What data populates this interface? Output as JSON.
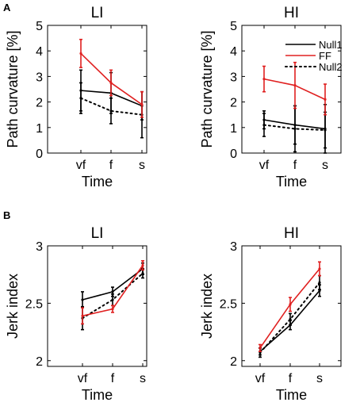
{
  "panel_labels": [
    "A",
    "B"
  ],
  "legend": {
    "placement": "top-right of panel A HI",
    "entries": [
      {
        "name": "Null1",
        "color": "#000000",
        "style": "solid"
      },
      {
        "name": "FF",
        "color": "#e02020",
        "style": "solid"
      },
      {
        "name": "Null2",
        "color": "#000000",
        "style": "dotted"
      }
    ]
  },
  "chart_data": [
    {
      "panel": "A",
      "type": "line",
      "title": "LI",
      "xlabel": "Time",
      "ylabel": "Path curvature [%]",
      "categories": [
        "vf",
        "f",
        "s"
      ],
      "ylim": [
        0,
        5
      ],
      "yticks": [
        "0",
        "1",
        "2",
        "3",
        "4",
        "5"
      ],
      "grid": false,
      "series": [
        {
          "name": "Null1",
          "values": [
            2.45,
            2.35,
            1.85
          ],
          "errors": [
            0.8,
            0.8,
            0.55
          ]
        },
        {
          "name": "FF",
          "values": [
            3.9,
            2.75,
            1.9
          ],
          "errors": [
            0.55,
            0.5,
            0.5
          ]
        },
        {
          "name": "Null2",
          "values": [
            2.15,
            1.65,
            1.5
          ],
          "errors": [
            0.6,
            0.5,
            0.9
          ]
        }
      ]
    },
    {
      "panel": "A",
      "type": "line",
      "title": "HI",
      "xlabel": "Time",
      "ylabel": "Path curvature [%]",
      "categories": [
        "vf",
        "f",
        "s"
      ],
      "ylim": [
        0,
        5
      ],
      "yticks": [
        "0",
        "1",
        "2",
        "3",
        "4",
        "5"
      ],
      "grid": false,
      "series": [
        {
          "name": "Null1",
          "values": [
            1.3,
            1.1,
            0.95
          ],
          "errors": [
            0.35,
            0.75,
            0.95
          ]
        },
        {
          "name": "FF",
          "values": [
            2.9,
            2.65,
            2.1
          ],
          "errors": [
            0.5,
            0.9,
            0.6
          ]
        },
        {
          "name": "Null2",
          "values": [
            1.1,
            0.95,
            0.9
          ],
          "errors": [
            0.45,
            0.9,
            0.7
          ]
        }
      ]
    },
    {
      "panel": "B",
      "type": "line",
      "title": "LI",
      "xlabel": "Time",
      "ylabel": "Jerk index",
      "categories": [
        "vf",
        "f",
        "s"
      ],
      "ylim": [
        1.95,
        3.0
      ],
      "yticks": [
        "2",
        "2.5",
        "3"
      ],
      "grid": false,
      "series": [
        {
          "name": "Null1",
          "values": [
            2.53,
            2.6,
            2.8
          ],
          "errors": [
            0.07,
            0.04,
            0.05
          ]
        },
        {
          "name": "FF",
          "values": [
            2.39,
            2.45,
            2.83
          ],
          "errors": [
            0.07,
            0.03,
            0.04
          ]
        },
        {
          "name": "Null2",
          "values": [
            2.37,
            2.53,
            2.76
          ],
          "errors": [
            0.1,
            0.05,
            0.04
          ]
        }
      ]
    },
    {
      "panel": "B",
      "type": "line",
      "title": "HI",
      "xlabel": "Time",
      "ylabel": "Jerk index",
      "categories": [
        "vf",
        "f",
        "s"
      ],
      "ylim": [
        1.95,
        3.0
      ],
      "yticks": [
        "2",
        "2.5",
        "3"
      ],
      "grid": false,
      "series": [
        {
          "name": "Null1",
          "values": [
            2.08,
            2.31,
            2.61
          ],
          "errors": [
            0.03,
            0.04,
            0.05
          ]
        },
        {
          "name": "FF",
          "values": [
            2.11,
            2.49,
            2.8
          ],
          "errors": [
            0.03,
            0.06,
            0.06
          ]
        },
        {
          "name": "Null2",
          "values": [
            2.07,
            2.36,
            2.68
          ],
          "errors": [
            0.04,
            0.05,
            0.06
          ]
        }
      ]
    }
  ]
}
